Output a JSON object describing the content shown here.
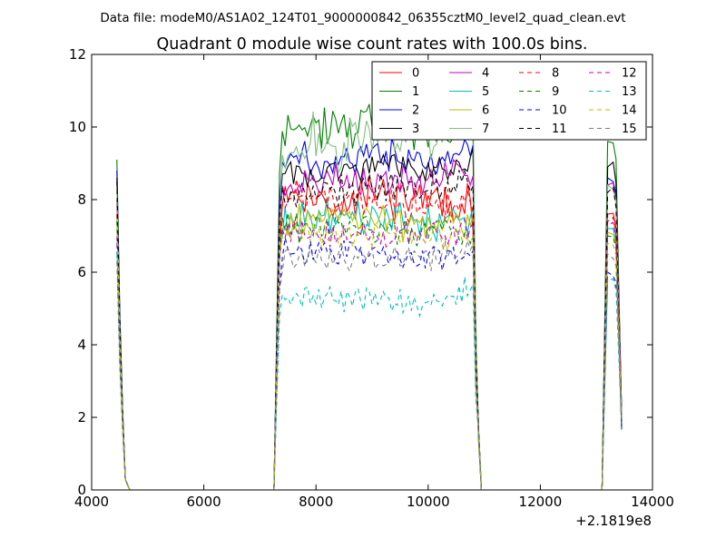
{
  "figure": {
    "suptitle": "Data file: modeM0/AS1A02_124T01_9000000842_06355cztM0_level2_quad_clean.evt",
    "title": "Quadrant 0 module wise count rates with 100.0s bins.",
    "x_offset_label": "+2.1819e8"
  },
  "chart_data": {
    "type": "line",
    "title": "Quadrant 0 module wise count rates with 100.0s bins.",
    "xlabel": "",
    "ylabel": "",
    "xlim": [
      4000,
      14000
    ],
    "ylim": [
      0,
      12
    ],
    "xticks": [
      4000,
      6000,
      8000,
      10000,
      12000,
      14000
    ],
    "yticks": [
      0,
      2,
      4,
      6,
      8,
      10,
      12
    ],
    "x_offset": "+2.1819e8",
    "grid": false,
    "legend_placement": "top-right",
    "legend_columns": 4,
    "segments": [
      {
        "t0": 4450,
        "t1": 4750
      },
      {
        "t0": 7250,
        "t1": 10950
      },
      {
        "t0": 13100,
        "t1": 13450
      }
    ],
    "zero_line": {
      "x_start": 4650,
      "x_end": 13100
    },
    "series": [
      {
        "name": "0",
        "color": "#ff0000",
        "dash": "solid",
        "plateau": [
          8.3,
          7.9,
          8.2,
          8.0,
          7.9
        ],
        "plateau_sd": 0.3,
        "start": [
          7.9,
          7.5,
          7.6
        ],
        "seed": 11
      },
      {
        "name": "1",
        "color": "#008000",
        "dash": "solid",
        "plateau": [
          9.8,
          10.0,
          10.2,
          9.9,
          10.1
        ],
        "plateau_sd": 0.3,
        "start": [
          9.1,
          9.7,
          9.6
        ],
        "seed": 22
      },
      {
        "name": "2",
        "color": "#0000ff",
        "dash": "solid",
        "plateau": [
          9.0,
          9.2,
          9.3,
          9.0,
          9.4
        ],
        "plateau_sd": 0.25,
        "start": [
          8.8,
          8.8,
          8.6
        ],
        "seed": 33
      },
      {
        "name": "3",
        "color": "#000000",
        "dash": "solid",
        "plateau": [
          8.7,
          8.8,
          8.9,
          8.8,
          9.0
        ],
        "plateau_sd": 0.22,
        "start": [
          8.6,
          8.3,
          8.9
        ],
        "seed": 44
      },
      {
        "name": "4",
        "color": "#bf00bf",
        "dash": "solid",
        "plateau": [
          8.4,
          8.5,
          8.6,
          8.5,
          8.8
        ],
        "plateau_sd": 0.22,
        "start": [
          8.0,
          8.1,
          8.4
        ],
        "seed": 55
      },
      {
        "name": "5",
        "color": "#00bfbf",
        "dash": "solid",
        "plateau": [
          7.5,
          7.5,
          7.5,
          7.4,
          7.6
        ],
        "plateau_sd": 0.25,
        "start": [
          7.5,
          7.7,
          7.2
        ],
        "seed": 66
      },
      {
        "name": "6",
        "color": "#bfbf00",
        "dash": "solid",
        "plateau": [
          7.3,
          7.5,
          7.4,
          7.3,
          7.5
        ],
        "plateau_sd": 0.25,
        "start": [
          7.6,
          7.3,
          7.1
        ],
        "seed": 77
      },
      {
        "name": "7",
        "color": "#7fbf7f",
        "dash": "solid",
        "plateau": [
          9.4,
          9.6,
          9.7,
          9.8,
          10.2
        ],
        "plateau_sd": 0.35,
        "start": [
          8.2,
          8.0,
          8.4
        ],
        "seed": 88
      },
      {
        "name": "8",
        "color": "#ff0000",
        "dash": "dashed",
        "plateau": [
          8.0,
          8.0,
          7.9,
          7.8,
          7.9
        ],
        "plateau_sd": 0.25,
        "start": [
          7.6,
          7.7,
          7.4
        ],
        "seed": 99
      },
      {
        "name": "9",
        "color": "#008000",
        "dash": "dashed",
        "plateau": [
          7.3,
          7.3,
          7.2,
          7.1,
          7.3
        ],
        "plateau_sd": 0.22,
        "start": [
          7.4,
          7.0,
          7.0
        ],
        "seed": 111
      },
      {
        "name": "10",
        "color": "#0000ff",
        "dash": "dashed",
        "plateau": [
          6.6,
          6.6,
          6.5,
          6.4,
          6.6
        ],
        "plateau_sd": 0.18,
        "start": [
          6.8,
          6.2,
          6.0
        ],
        "seed": 122
      },
      {
        "name": "11",
        "color": "#000000",
        "dash": "dashed",
        "plateau": [
          8.2,
          8.3,
          8.4,
          8.3,
          8.5
        ],
        "plateau_sd": 0.22,
        "start": [
          8.5,
          8.4,
          8.2
        ],
        "seed": 133
      },
      {
        "name": "12",
        "color": "#bf00bf",
        "dash": "dashed",
        "plateau": [
          7.1,
          7.1,
          7.0,
          7.0,
          7.2
        ],
        "plateau_sd": 0.18,
        "start": [
          7.0,
          7.0,
          7.3
        ],
        "seed": 144
      },
      {
        "name": "13",
        "color": "#00bfbf",
        "dash": "dashed",
        "plateau": [
          5.3,
          5.3,
          5.2,
          5.1,
          5.6
        ],
        "plateau_sd": 0.2,
        "start": [
          6.5,
          5.3,
          5.8
        ],
        "seed": 155
      },
      {
        "name": "14",
        "color": "#bfbf00",
        "dash": "dashed",
        "plateau": [
          7.0,
          7.0,
          7.0,
          6.9,
          7.0
        ],
        "plateau_sd": 0.18,
        "start": [
          7.3,
          7.1,
          6.8
        ],
        "seed": 166
      },
      {
        "name": "15",
        "color": "#7f7f7f",
        "dash": "dashed",
        "plateau": [
          6.4,
          6.4,
          6.4,
          6.4,
          6.5
        ],
        "plateau_sd": 0.2,
        "start": [
          6.3,
          6.1,
          6.5
        ],
        "seed": 177
      }
    ]
  }
}
